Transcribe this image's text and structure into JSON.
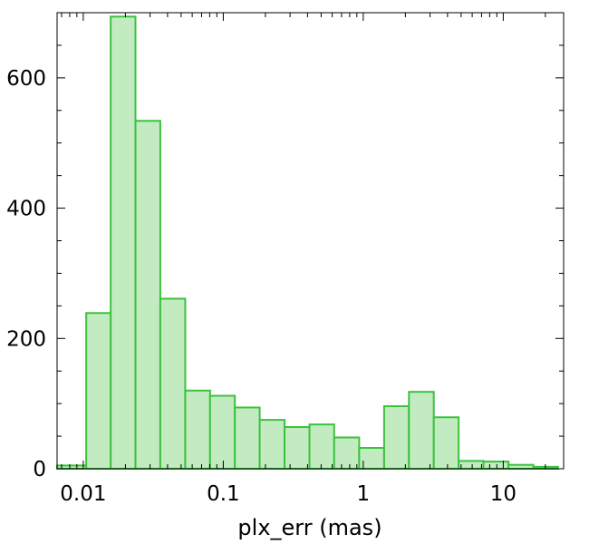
{
  "chart_data": {
    "type": "bar",
    "title": "",
    "xlabel": "plx_err (mas)",
    "ylabel": "",
    "x_scale": "log",
    "xlim": [
      0.0065,
      27
    ],
    "ylim": [
      0,
      700
    ],
    "x_ticks": [
      0.01,
      0.1,
      1,
      10
    ],
    "x_tick_labels": [
      "0.01",
      "0.1",
      "1",
      "10"
    ],
    "y_ticks": [
      0,
      200,
      400,
      600
    ],
    "y_tick_labels": [
      "0",
      "200",
      "400",
      "600"
    ],
    "bins": [
      {
        "x0": 0.0065,
        "x1": 0.0105,
        "count": 5
      },
      {
        "x0": 0.0105,
        "x1": 0.0157,
        "count": 239
      },
      {
        "x0": 0.0157,
        "x1": 0.0236,
        "count": 694
      },
      {
        "x0": 0.0236,
        "x1": 0.0355,
        "count": 534
      },
      {
        "x0": 0.0355,
        "x1": 0.0535,
        "count": 261
      },
      {
        "x0": 0.0535,
        "x1": 0.0805,
        "count": 120
      },
      {
        "x0": 0.0805,
        "x1": 0.121,
        "count": 112
      },
      {
        "x0": 0.121,
        "x1": 0.182,
        "count": 94
      },
      {
        "x0": 0.182,
        "x1": 0.274,
        "count": 75
      },
      {
        "x0": 0.274,
        "x1": 0.413,
        "count": 64
      },
      {
        "x0": 0.413,
        "x1": 0.62,
        "count": 68
      },
      {
        "x0": 0.62,
        "x1": 0.935,
        "count": 48
      },
      {
        "x0": 0.935,
        "x1": 1.41,
        "count": 32
      },
      {
        "x0": 1.41,
        "x1": 2.12,
        "count": 96
      },
      {
        "x0": 2.12,
        "x1": 3.19,
        "count": 118
      },
      {
        "x0": 3.19,
        "x1": 4.8,
        "count": 79
      },
      {
        "x0": 4.8,
        "x1": 7.22,
        "count": 12
      },
      {
        "x0": 7.22,
        "x1": 10.9,
        "count": 11
      },
      {
        "x0": 10.9,
        "x1": 16.4,
        "count": 6
      },
      {
        "x0": 16.4,
        "x1": 24.6,
        "count": 3
      }
    ],
    "bar_fill": "#c2ebc2",
    "bar_edge": "#3cc23c",
    "grid": false,
    "legend": "none"
  }
}
